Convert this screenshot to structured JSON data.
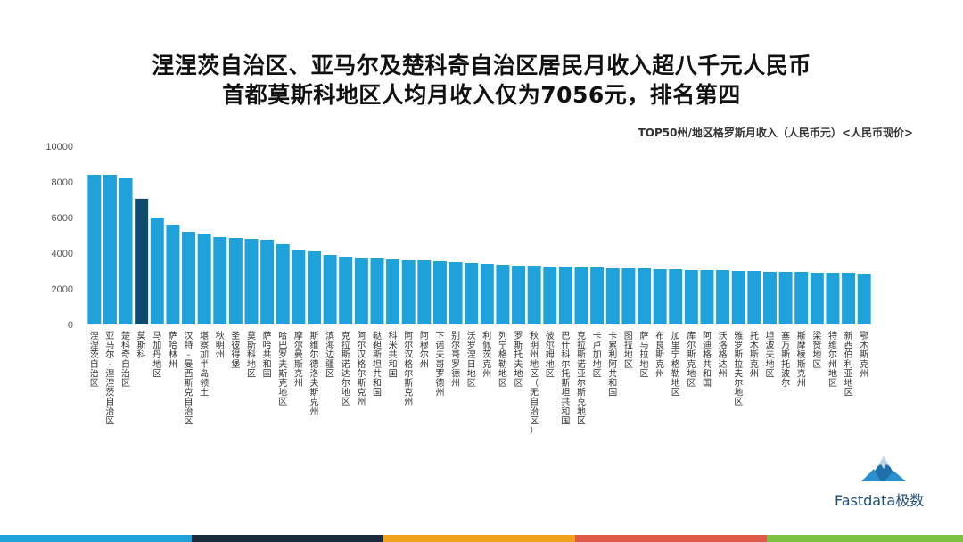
{
  "header": {
    "title_line1": "涅涅茨自治区、亚马尔及楚科奇自治区居民月收入超八千元人民币",
    "title_line2": "首都莫斯科地区人均月收入仅为7056元，排名第四",
    "subtitle": "TOP50州/地区格罗斯月收入（人民币元）<人民币现价>"
  },
  "brand": {
    "name": "Fastdata极数",
    "logo_icon": "mountain-logo-icon"
  },
  "colors": {
    "bar": "#1fa2d9",
    "highlight": "#0d4a6b",
    "footer": [
      "#1fa2d9",
      "#1b2a3a",
      "#f0a21c",
      "#e05a4a",
      "#7cc242"
    ]
  },
  "chart_data": {
    "type": "bar",
    "title": "",
    "xlabel": "",
    "ylabel": "",
    "ylim": [
      0,
      10000
    ],
    "yticks": [
      0,
      2000,
      4000,
      6000,
      8000,
      10000
    ],
    "grid": false,
    "highlight_category": "莫斯科",
    "categories": [
      "涅涅茨自治区",
      "亚马尔-涅涅茨自治区",
      "楚科奇自治区",
      "莫斯科",
      "马加丹地区",
      "萨哈林州",
      "汉特-曼西斯克自治区",
      "堪察加半岛领土",
      "秋明州",
      "圣彼得堡",
      "莫斯科地区",
      "萨哈共和国",
      "哈巴罗夫斯克地区",
      "摩尔曼斯克州",
      "斯维尔德洛夫斯克州",
      "滨海边疆区",
      "克拉斯诺达尔地区",
      "阿尔汉格尔斯克州",
      "鞑靼斯坦共和国",
      "科米共和国",
      "阿尔汉格尔斯克州",
      "阿穆尔州",
      "下诺夫哥罗德州",
      "别尔哥罗德州",
      "沃罗涅日地区",
      "利佩茨克州",
      "列宁格勒地区",
      "罗斯托夫地区",
      "秋明州地区（无自治区）",
      "彼尔姆地区",
      "巴什科尔托斯坦共和国",
      "克拉斯诺亚尔斯克地区",
      "卡卢加地区",
      "卡累利阿共和国",
      "图拉地区",
      "萨马拉地区",
      "布良斯克州",
      "加里宁格勒地区",
      "库尔斯克地区",
      "阿迪格共和国",
      "沃洛格达州",
      "雅罗斯拉夫尔地区",
      "托木斯克州",
      "坦波夫地区",
      "塞万斯托波尔",
      "斯摩棱斯克州",
      "梁赞地区",
      "特维尔州地区",
      "新西伯利亚地区",
      "鄂木斯克州"
    ],
    "values": [
      8400,
      8400,
      8200,
      7056,
      6000,
      5600,
      5200,
      5100,
      4900,
      4850,
      4800,
      4750,
      4500,
      4200,
      4100,
      3900,
      3800,
      3750,
      3750,
      3650,
      3600,
      3600,
      3550,
      3500,
      3450,
      3400,
      3350,
      3300,
      3300,
      3250,
      3250,
      3200,
      3200,
      3150,
      3150,
      3150,
      3100,
      3100,
      3050,
      3050,
      3050,
      3000,
      3000,
      2950,
      2950,
      2950,
      2900,
      2900,
      2900,
      2850
    ]
  }
}
